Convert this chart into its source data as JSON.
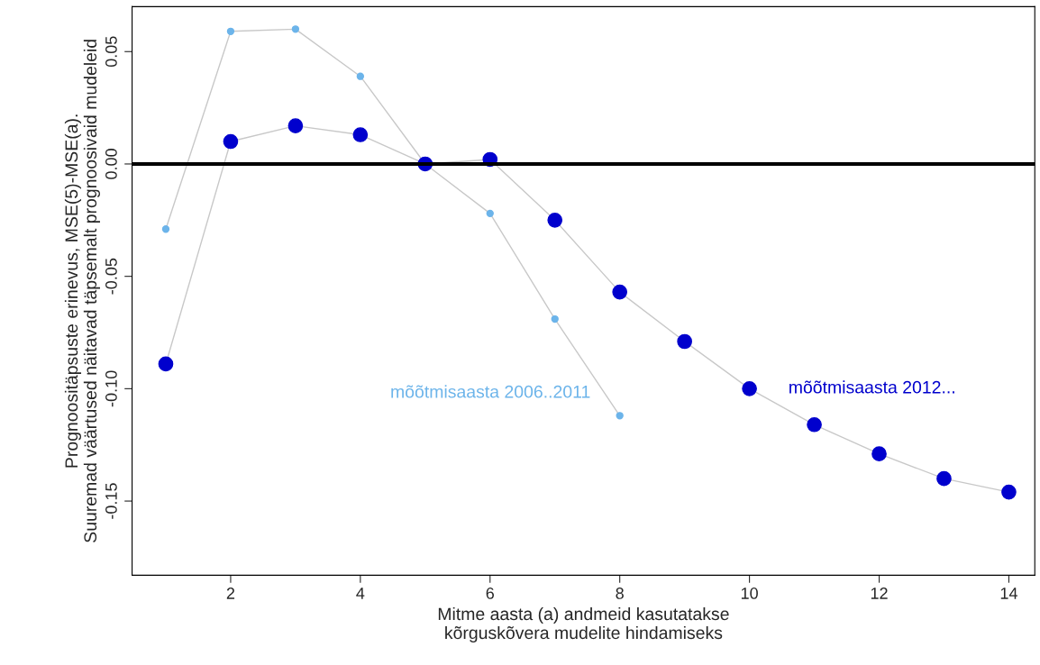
{
  "chart_data": {
    "type": "line",
    "xlabel": "Mitme aasta (a) andmeid kasutatakse\nkõrguskõvera mudelite hindamiseks",
    "ylabel": "Prognoositäpsuste erinevus, MSE(5)-MSE(a).\nSuuremad väärtused näitavad täpsemalt prognoosivaid mudeleid",
    "x": [
      1,
      2,
      3,
      4,
      5,
      6,
      7,
      8,
      9,
      10,
      11,
      12,
      13,
      14
    ],
    "series": [
      {
        "name": "mõõtmisaasta 2006..2011",
        "color": "#6cb4ea",
        "x": [
          1,
          2,
          3,
          4,
          5,
          6,
          7,
          8
        ],
        "values": [
          -0.029,
          0.059,
          0.06,
          0.039,
          0.0,
          -0.022,
          -0.069,
          -0.112
        ]
      },
      {
        "name": "mõõtmisaasta 2012...",
        "color": "#0000cd",
        "values": [
          -0.089,
          0.01,
          0.017,
          0.013,
          0.0,
          0.002,
          -0.025,
          -0.057,
          -0.079,
          -0.1,
          -0.116,
          -0.129,
          -0.14,
          -0.146
        ]
      }
    ],
    "xlim": [
      0.48,
      14.4
    ],
    "ylim": [
      -0.183,
      0.07
    ],
    "xticks": [
      2,
      4,
      6,
      8,
      10,
      12,
      14
    ],
    "yticks": [
      {
        "value": -0.15,
        "label": "-0.15"
      },
      {
        "value": -0.1,
        "label": "-0.10"
      },
      {
        "value": -0.05,
        "label": "-0.05"
      },
      {
        "value": 0,
        "label": "0.00"
      },
      {
        "value": 0.05,
        "label": "0.05"
      }
    ],
    "ref_lines": [
      {
        "axis": "y",
        "value": 0,
        "color": "#000000"
      }
    ],
    "marker": "circle",
    "grid": false,
    "legend": false
  }
}
